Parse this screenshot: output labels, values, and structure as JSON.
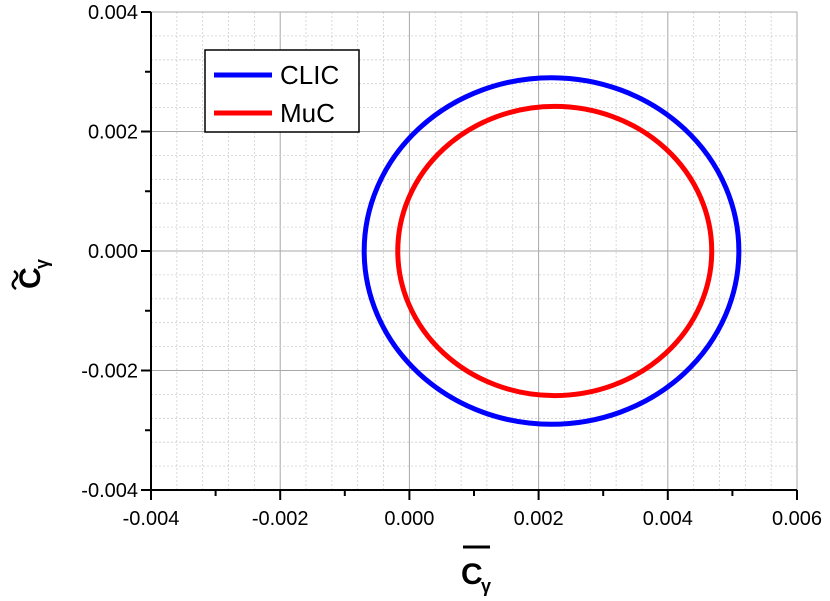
{
  "chart_data": {
    "type": "line",
    "title": "",
    "xlabel": "C",
    "xlabel_subscript": "γ",
    "xlabel_accent": "bar",
    "ylabel": "C",
    "ylabel_subscript": "γ",
    "ylabel_accent": "tilde",
    "xlim": [
      -0.004,
      0.006
    ],
    "ylim": [
      -0.004,
      0.004
    ],
    "xticks": [
      -0.004,
      -0.002,
      0.0,
      0.002,
      0.004,
      0.006
    ],
    "xtick_labels": [
      "-0.004",
      "-0.002",
      "0.000",
      "0.002",
      "0.004",
      "0.006"
    ],
    "yticks": [
      -0.004,
      -0.002,
      0.0,
      0.002,
      0.004
    ],
    "ytick_labels": [
      "-0.004",
      "-0.002",
      "0.000",
      "0.002",
      "0.004"
    ],
    "grid": true,
    "legend_position": "top-left",
    "series": [
      {
        "name": "CLIC",
        "color": "#0000ff",
        "shape": "ellipse",
        "center": [
          0.0022,
          0.0
        ],
        "x_semi_axis": 0.0029,
        "y_semi_axis": 0.0029
      },
      {
        "name": "MuC",
        "color": "#ff0000",
        "shape": "ellipse",
        "center": [
          0.00225,
          0.0
        ],
        "x_semi_axis": 0.00243,
        "y_semi_axis": 0.00242
      }
    ]
  }
}
